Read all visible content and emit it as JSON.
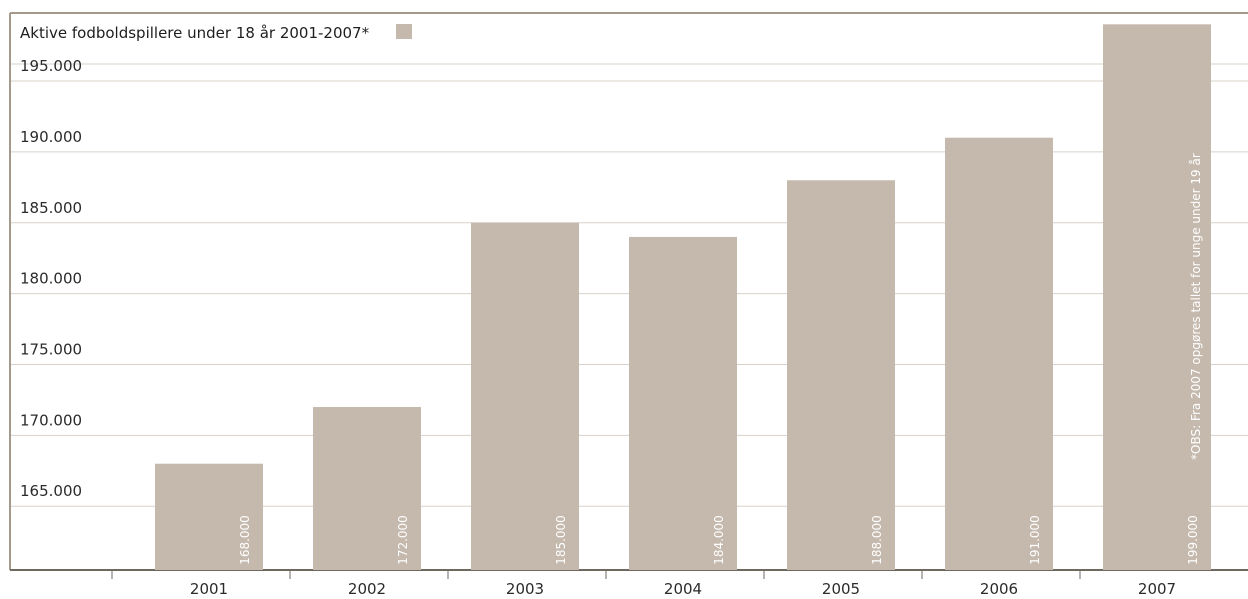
{
  "colors": {
    "bar": "#c5b9ad",
    "frame": "#a49a8c",
    "grid": "#d8d1c9",
    "bar_label": "#ffffff"
  },
  "chart_data": {
    "type": "bar",
    "title": "Aktive fodboldspillere under 18 år 2001-2007*",
    "categories": [
      "2001",
      "2002",
      "2003",
      "2004",
      "2005",
      "2006",
      "2007"
    ],
    "values": [
      168000,
      172000,
      185000,
      184000,
      188000,
      191000,
      199000
    ],
    "value_labels": [
      "168.000",
      "172.000",
      "185.000",
      "184.000",
      "188.000",
      "191.000",
      "199.000"
    ],
    "y_ticks": [
      {
        "value": 165000,
        "label": "165.000"
      },
      {
        "value": 170000,
        "label": "170.000"
      },
      {
        "value": 175000,
        "label": "175.000"
      },
      {
        "value": 180000,
        "label": "180.000"
      },
      {
        "value": 185000,
        "label": "185.000"
      },
      {
        "value": 190000,
        "label": "190.000"
      },
      {
        "value": 195000,
        "label": "195.000"
      }
    ],
    "ylim": [
      160500,
      199800
    ],
    "grid": true,
    "legend": "top-left",
    "note": "*OBS: Fra 2007 opgøres tallet for unge under 19 år"
  }
}
